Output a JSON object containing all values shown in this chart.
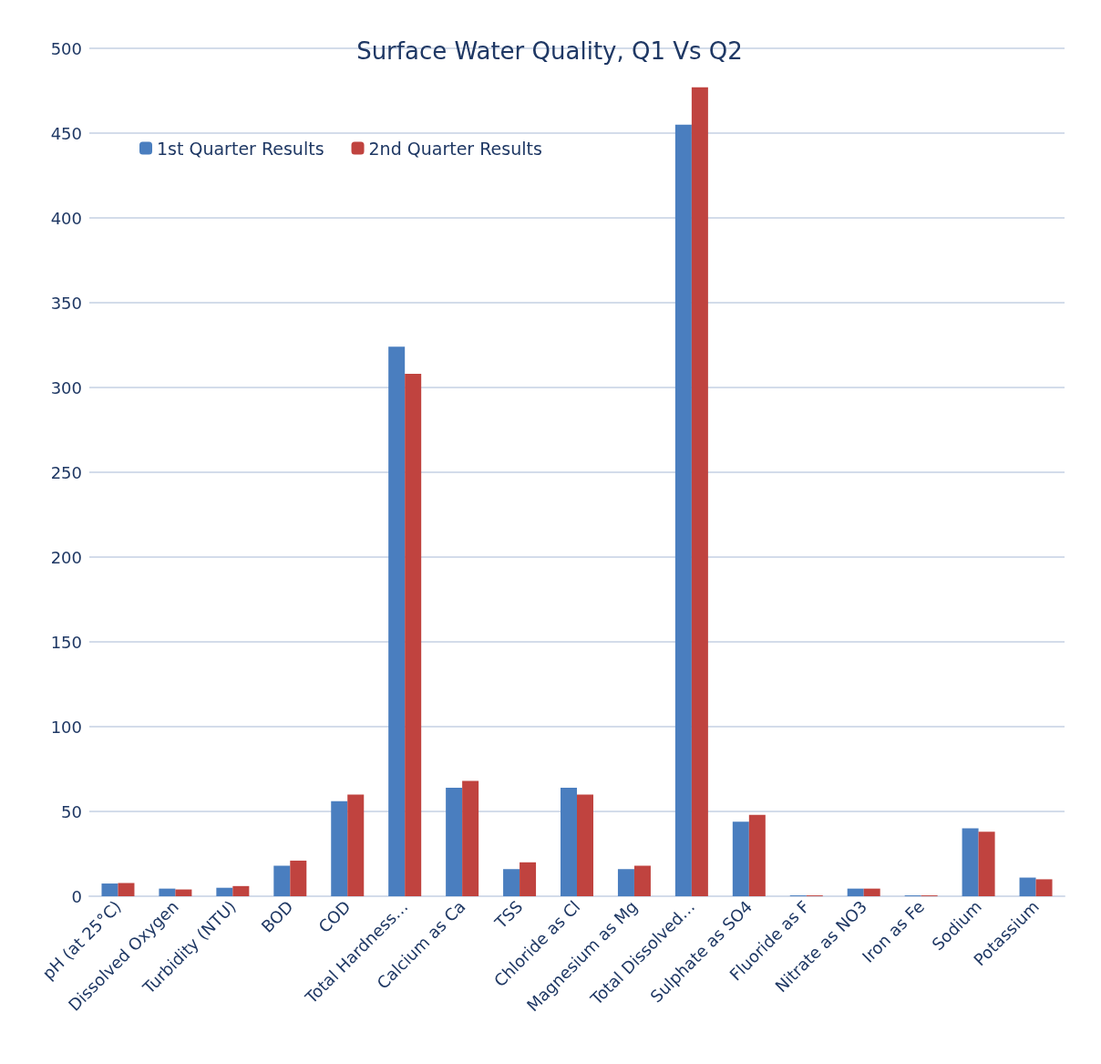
{
  "chart_data": {
    "type": "bar",
    "title": "Surface Water Quality, Q1 Vs Q2",
    "categories": [
      "pH (at 25°C)",
      "Dissolved Oxygen",
      "Turbidity (NTU)",
      "BOD",
      "COD",
      "Total Hardness…",
      "Calcium as Ca",
      "TSS",
      "Chloride as Cl",
      "Magnesium as Mg",
      "Total Dissolved…",
      "Sulphate as SO4",
      "Fluoride as F",
      "Nitrate as NO3",
      "Iron as Fe",
      "Sodium",
      "Potassium"
    ],
    "series": [
      {
        "name": "1st Quarter Results",
        "color": "#4a7ebf",
        "values": [
          7.5,
          4.5,
          5,
          18,
          56,
          324,
          64,
          16,
          64,
          16,
          455,
          44,
          0.5,
          4.5,
          0.5,
          40,
          11
        ]
      },
      {
        "name": "2nd Quarter Results",
        "color": "#c0433f",
        "values": [
          7.8,
          4,
          6,
          21,
          60,
          308,
          68,
          20,
          60,
          18,
          477,
          48,
          0.5,
          4.5,
          0.5,
          38,
          10
        ]
      }
    ],
    "ylim": [
      0,
      500
    ],
    "yticks": [
      0,
      50,
      100,
      150,
      200,
      250,
      300,
      350,
      400,
      450,
      500
    ],
    "grid": "y",
    "legend": "top left"
  }
}
